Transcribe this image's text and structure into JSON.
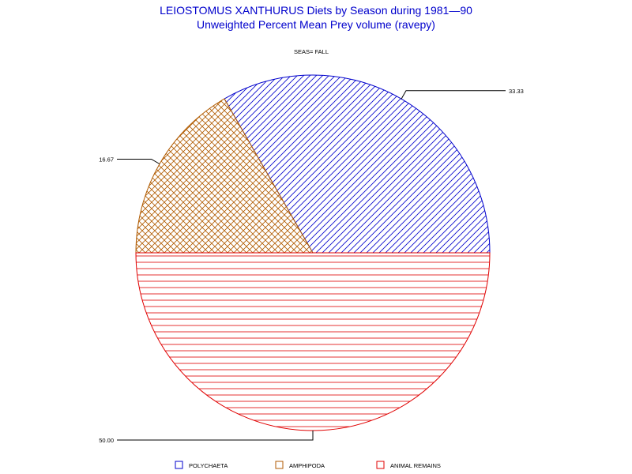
{
  "chart_data": {
    "type": "pie",
    "title": "LEIOSTOMUS XANTHURUS Diets by Season during 1981—90",
    "subtitle": "Unweighted Percent Mean Prey volume (ravepy)",
    "group_label": "SEAS= FALL",
    "slices": [
      {
        "name": "POLYCHAETA",
        "value": 33.33,
        "label": "33.33",
        "color": "#0000cc",
        "pattern": "diagonal"
      },
      {
        "name": "AMPHIPODA",
        "value": 16.67,
        "label": "16.67",
        "color": "#b05a00",
        "pattern": "crosshatch"
      },
      {
        "name": "ANIMAL REMAINS",
        "value": 50.0,
        "label": "50.00",
        "color": "#e00000",
        "pattern": "horizontal"
      }
    ],
    "legend_position": "bottom"
  }
}
